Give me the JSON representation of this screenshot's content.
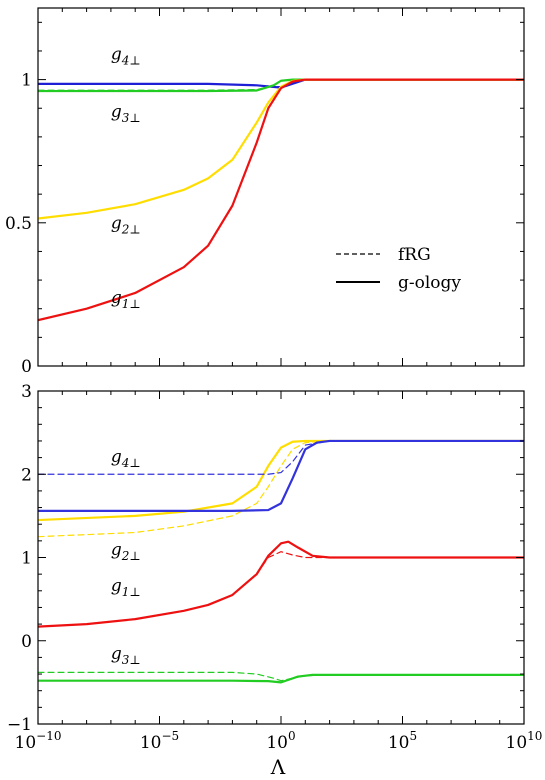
{
  "chart_data": [
    {
      "type": "line",
      "x_scale": "log",
      "xlim": [
        1e-10,
        10000000000.0
      ],
      "ylim": [
        0,
        1.25
      ],
      "yticks": [
        "0",
        "0.5",
        "1"
      ],
      "legend": {
        "placement": "center-right",
        "entries": [
          {
            "label": "fRG",
            "style": "dashed"
          },
          {
            "label": "g-ology",
            "style": "solid"
          }
        ]
      },
      "annotations": [
        {
          "base": "g",
          "sub": "4⊥",
          "at": [
            1e-07,
            1.07
          ]
        },
        {
          "base": "g",
          "sub": "3⊥",
          "at": [
            1e-07,
            0.87
          ]
        },
        {
          "base": "g",
          "sub": "2⊥",
          "at": [
            1e-07,
            0.48
          ]
        },
        {
          "base": "g",
          "sub": "1⊥",
          "at": [
            1e-07,
            0.22
          ]
        }
      ],
      "series": [
        {
          "color": "#1f1fd6",
          "style": "solid",
          "x": [
            1e-10,
            0.001,
            0.1,
            1,
            10,
            10000000000.0
          ],
          "y": [
            0.985,
            0.985,
            0.98,
            0.972,
            1.0,
            1.0
          ]
        },
        {
          "color": "#1f1fd6",
          "style": "dashed",
          "x": [
            1e-10,
            0.001,
            0.1,
            1,
            10,
            10000000000.0
          ],
          "y": [
            0.985,
            0.985,
            0.98,
            0.975,
            1.0,
            1.0
          ]
        },
        {
          "color": "#22cc22",
          "style": "solid",
          "x": [
            1e-10,
            0.001,
            0.1,
            0.5,
            1,
            3,
            10000000000.0
          ],
          "y": [
            0.96,
            0.96,
            0.962,
            0.98,
            0.996,
            1.0,
            1.0
          ]
        },
        {
          "color": "#22cc22",
          "style": "dashed",
          "x": [
            1e-10,
            0.001,
            0.1,
            0.5,
            1,
            3,
            10000000000.0
          ],
          "y": [
            0.963,
            0.963,
            0.965,
            0.98,
            0.996,
            1.0,
            1.0
          ]
        },
        {
          "color": "#ffdd00",
          "style": "solid",
          "x": [
            1e-10,
            1e-08,
            1e-06,
            0.0001,
            0.001,
            0.01,
            0.1,
            0.3,
            1,
            3,
            10,
            10000000000.0
          ],
          "y": [
            0.515,
            0.535,
            0.565,
            0.615,
            0.655,
            0.72,
            0.85,
            0.92,
            0.975,
            0.995,
            1.0,
            1.0
          ]
        },
        {
          "color": "#ee1111",
          "style": "solid",
          "x": [
            1e-10,
            1e-08,
            1e-06,
            0.0001,
            0.001,
            0.01,
            0.1,
            0.3,
            1,
            3,
            10,
            10000000000.0
          ],
          "y": [
            0.16,
            0.2,
            0.255,
            0.345,
            0.42,
            0.56,
            0.78,
            0.9,
            0.97,
            0.993,
            1.0,
            1.0
          ]
        }
      ]
    },
    {
      "type": "line",
      "x_scale": "log",
      "xlim": [
        1e-10,
        10000000000.0
      ],
      "ylim": [
        -1,
        3
      ],
      "xlabel": "Λ",
      "xticks": [
        {
          "base": "10",
          "exp": "−10"
        },
        {
          "base": "10",
          "exp": "−5"
        },
        {
          "base": "10",
          "exp": "0"
        },
        {
          "base": "10",
          "exp": "5"
        },
        {
          "base": "10",
          "exp": "10"
        }
      ],
      "yticks": [
        "−1",
        "0",
        "1",
        "2",
        "3"
      ],
      "annotations": [
        {
          "base": "g",
          "sub": "4⊥",
          "at": [
            1e-07,
            2.15
          ]
        },
        {
          "base": "g",
          "sub": "2⊥",
          "at": [
            1e-07,
            1.03
          ]
        },
        {
          "base": "g",
          "sub": "1⊥",
          "at": [
            1e-07,
            0.6
          ]
        },
        {
          "base": "g",
          "sub": "3⊥",
          "at": [
            1e-07,
            -0.22
          ]
        }
      ],
      "series": [
        {
          "color": "#ffdd00",
          "style": "solid",
          "x": [
            1e-10,
            1e-06,
            0.0001,
            0.01,
            0.1,
            0.3,
            1,
            3,
            10,
            100,
            10000000000.0
          ],
          "y": [
            1.45,
            1.5,
            1.55,
            1.65,
            1.85,
            2.1,
            2.32,
            2.39,
            2.4,
            2.4,
            2.4
          ]
        },
        {
          "color": "#ffdd00",
          "style": "dashed",
          "x": [
            1e-10,
            1e-06,
            0.0001,
            0.01,
            0.1,
            0.3,
            1,
            3,
            10,
            100,
            10000000000.0
          ],
          "y": [
            1.25,
            1.3,
            1.38,
            1.5,
            1.65,
            1.85,
            2.1,
            2.3,
            2.38,
            2.4,
            2.4
          ]
        },
        {
          "color": "#3333dd",
          "style": "dashed",
          "x": [
            1e-10,
            0.01,
            0.3,
            1,
            3,
            10,
            100,
            10000000000.0
          ],
          "y": [
            2.0,
            2.0,
            2.0,
            2.02,
            2.15,
            2.35,
            2.4,
            2.4
          ]
        },
        {
          "color": "#3333dd",
          "style": "solid",
          "x": [
            1e-10,
            0.01,
            0.3,
            1,
            3,
            10,
            30,
            100,
            10000000000.0
          ],
          "y": [
            1.56,
            1.56,
            1.57,
            1.65,
            1.95,
            2.3,
            2.38,
            2.4,
            2.4
          ]
        },
        {
          "color": "#ee1111",
          "style": "solid",
          "x": [
            1e-10,
            1e-08,
            1e-06,
            0.0001,
            0.001,
            0.01,
            0.1,
            0.3,
            1,
            2,
            5,
            20,
            100,
            10000000000.0
          ],
          "y": [
            0.17,
            0.2,
            0.26,
            0.36,
            0.43,
            0.55,
            0.8,
            1.02,
            1.17,
            1.19,
            1.12,
            1.02,
            1.0,
            1.0
          ]
        },
        {
          "color": "#ee1111",
          "style": "dashed",
          "x": [
            1e-10,
            1e-08,
            1e-06,
            0.0001,
            0.001,
            0.01,
            0.1,
            0.3,
            1,
            3,
            10,
            30,
            10000000000.0
          ],
          "y": [
            0.17,
            0.2,
            0.26,
            0.36,
            0.43,
            0.55,
            0.8,
            1.0,
            1.07,
            1.03,
            1.0,
            1.0,
            1.0
          ]
        },
        {
          "color": "#22cc22",
          "style": "dashed",
          "x": [
            1e-10,
            0.01,
            0.1,
            0.5,
            1,
            3,
            10,
            100,
            10000000000.0
          ],
          "y": [
            -0.38,
            -0.38,
            -0.4,
            -0.45,
            -0.48,
            -0.45,
            -0.42,
            -0.41,
            -0.41
          ]
        },
        {
          "color": "#22cc22",
          "style": "solid",
          "x": [
            1e-10,
            0.01,
            0.3,
            1,
            2,
            5,
            20,
            100,
            10000000000.0
          ],
          "y": [
            -0.48,
            -0.48,
            -0.485,
            -0.5,
            -0.47,
            -0.43,
            -0.41,
            -0.41,
            -0.41
          ]
        }
      ]
    }
  ]
}
